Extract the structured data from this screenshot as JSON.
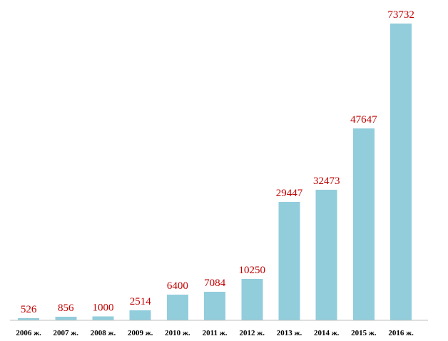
{
  "chart_data": {
    "type": "bar",
    "categories": [
      "2006 ж.",
      "2007 ж.",
      "2008 ж.",
      "2009 ж.",
      "2010 ж.",
      "2011 ж.",
      "2012 ж.",
      "2013 ж.",
      "2014 ж.",
      "2015 ж.",
      "2016 ж."
    ],
    "values": [
      526,
      856,
      1000,
      2514,
      6400,
      7084,
      10250,
      29447,
      32473,
      47647,
      73732
    ],
    "data_labels": [
      "526",
      "856",
      "1000",
      "2514",
      "6400",
      "7084",
      "10250",
      "29447",
      "32473",
      "47647",
      "73732"
    ],
    "title": "",
    "xlabel": "",
    "ylabel": "",
    "ylim": [
      0,
      73732
    ],
    "grid": false,
    "legend": "none",
    "bar_color": "#92cddc",
    "label_color": "#c00000"
  }
}
